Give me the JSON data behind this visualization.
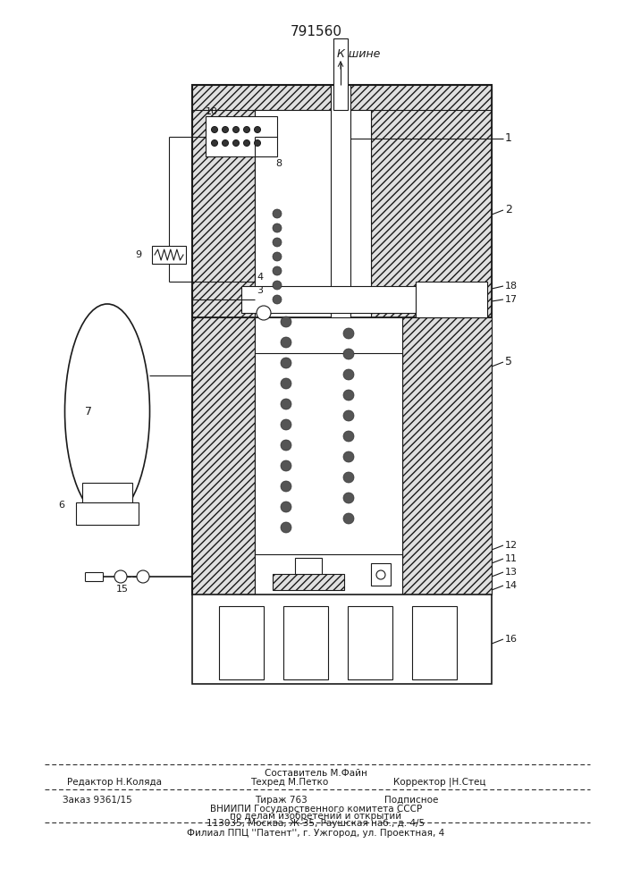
{
  "patent_number": "791560",
  "k_shine": "К шине",
  "bg": "#ffffff",
  "lc": "#1a1a1a",
  "fw": 7.07,
  "fh": 10.0,
  "footer": {
    "l1": "Составитель М.Файн",
    "l2a": "Редактор Н.Коляда",
    "l2b": "Техред М.Петко",
    "l2c": "Корректор |Н.Стец",
    "l3a": "Заказ 9361/15",
    "l3b": "Тираж 763",
    "l3c": "Подписное",
    "l4": "ВНИИПИ Государственного комитета СССР",
    "l5": "по делам изобретений и открытий",
    "l6": "113035, Москва, Ж-35, Раушская наб., д. 4/5",
    "l7": "Филиал ППЦ ''Патент'', г. Ужгород, ул. Проектная, 4"
  }
}
